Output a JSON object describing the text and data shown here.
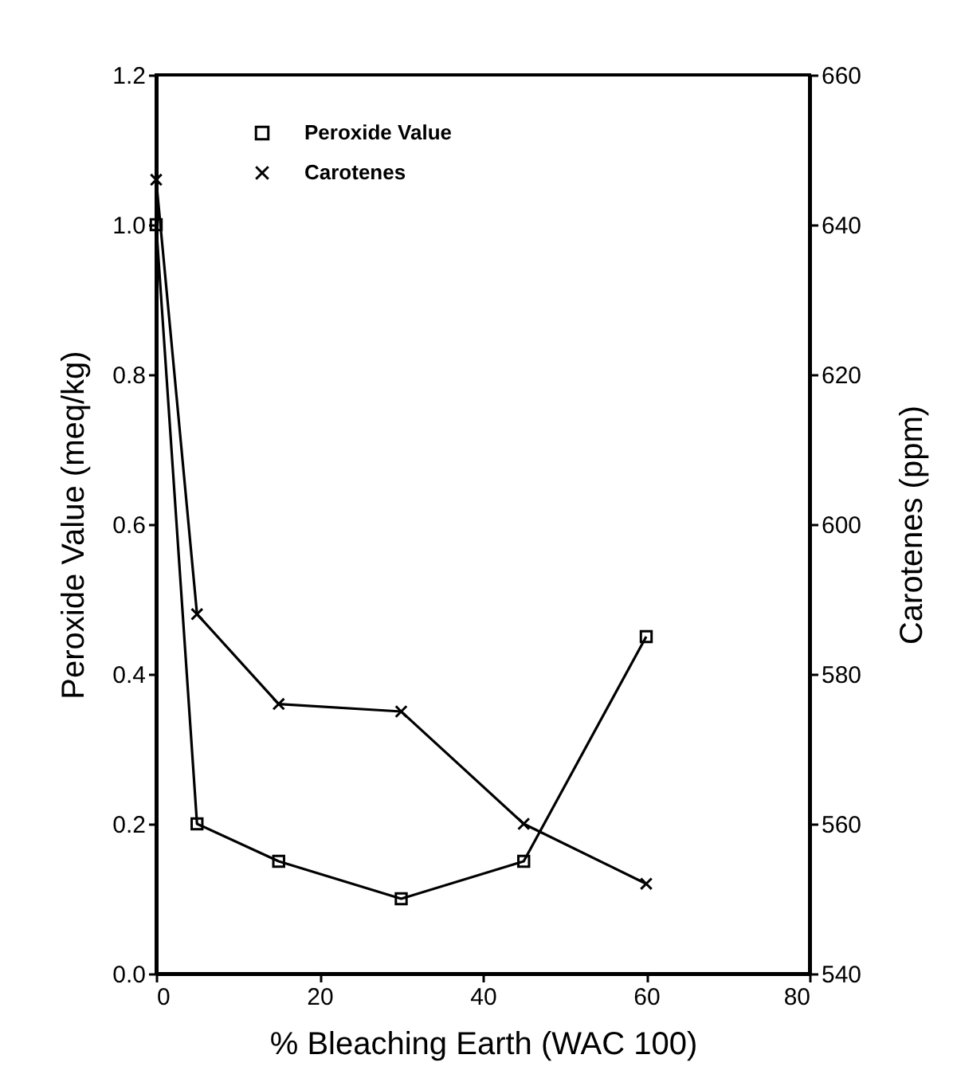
{
  "chart_data": {
    "type": "line",
    "xlabel": "% Bleaching Earth (WAC 100)",
    "ylabel": "Peroxide Value (meq/kg)",
    "y2label": "Carotenes (ppm)",
    "x": [
      0,
      5,
      15,
      30,
      45,
      60
    ],
    "series": [
      {
        "name": "Peroxide Value",
        "color": "#000000",
        "marker": "square",
        "values": [
          1.0,
          0.2,
          0.15,
          0.1,
          0.15,
          0.45
        ]
      },
      {
        "name": "Carotenes",
        "color": "#000000",
        "marker": "cross",
        "axis": "y2",
        "values": [
          646,
          588,
          576,
          575,
          560,
          552
        ]
      }
    ],
    "xlim": [
      0,
      80
    ],
    "xticks": [
      0,
      20,
      40,
      60,
      80
    ],
    "ylim": [
      0,
      1.2
    ],
    "yticks": [
      {
        "value": 0,
        "label": "0.0"
      },
      0.2,
      0.4,
      0.6,
      0.8,
      {
        "value": 1,
        "label": "1.0"
      },
      1.2
    ],
    "y2lim": [
      540,
      660
    ],
    "y2ticks": [
      540,
      560,
      580,
      600,
      620,
      640,
      660
    ],
    "grid": false,
    "legend": "top",
    "line_style": "solid"
  }
}
